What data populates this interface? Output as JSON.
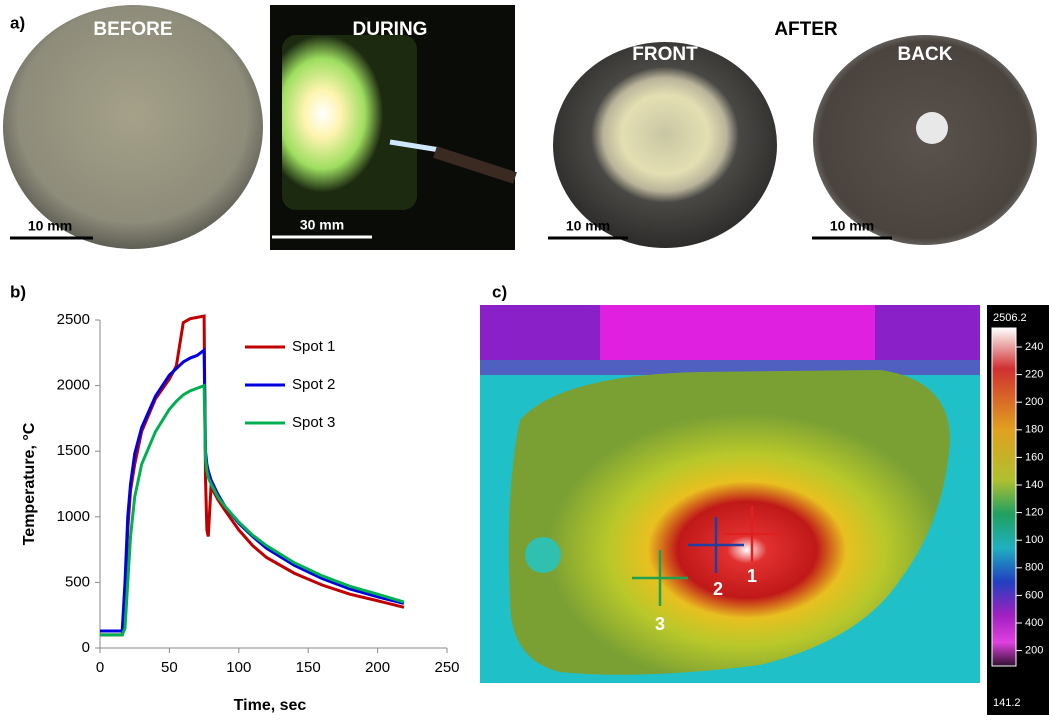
{
  "panels": {
    "a": "a)",
    "b": "b)",
    "c": "c)"
  },
  "photos": {
    "before": "BEFORE",
    "during": "DURING",
    "after": "AFTER",
    "front": "FRONT",
    "back": "BACK",
    "scale_before": "10 mm",
    "scale_during": "30 mm",
    "scale_front": "10 mm",
    "scale_back": "10 mm"
  },
  "chart_data": {
    "type": "line",
    "x_label": "Time, sec",
    "y_label": "Temperature, °C",
    "x": [
      0,
      16,
      18,
      20,
      22,
      25,
      30,
      40,
      50,
      55,
      60,
      65,
      70,
      75,
      76,
      77,
      78,
      80,
      85,
      90,
      100,
      110,
      120,
      140,
      160,
      180,
      200,
      219
    ],
    "series": [
      {
        "name": "Spot 1",
        "color": "#c00000",
        "values": [
          100,
          100,
          400,
          900,
          1200,
          1400,
          1650,
          1900,
          2050,
          2150,
          2480,
          2510,
          2520,
          2530,
          1300,
          900,
          850,
          1230,
          1130,
          1050,
          900,
          780,
          690,
          570,
          480,
          410,
          360,
          310
        ]
      },
      {
        "name": "Spot 2",
        "color": "#0000e0",
        "values": [
          130,
          130,
          500,
          1000,
          1250,
          1480,
          1680,
          1920,
          2080,
          2130,
          2180,
          2210,
          2230,
          2270,
          1500,
          1400,
          1350,
          1280,
          1170,
          1080,
          950,
          850,
          760,
          630,
          530,
          450,
          390,
          340
        ]
      },
      {
        "name": "Spot 3",
        "color": "#00b050",
        "values": [
          100,
          100,
          150,
          500,
          850,
          1150,
          1400,
          1650,
          1820,
          1880,
          1930,
          1960,
          1980,
          2000,
          1450,
          1350,
          1300,
          1250,
          1150,
          1080,
          960,
          860,
          780,
          650,
          550,
          470,
          410,
          350
        ]
      }
    ],
    "xlim": [
      0,
      250
    ],
    "xticks": [
      0,
      50,
      100,
      150,
      200,
      250
    ],
    "ylim": [
      0,
      2500
    ],
    "yticks": [
      0,
      500,
      1000,
      1500,
      2000,
      2500
    ]
  },
  "thermal": {
    "spots": [
      "1",
      "2",
      "3"
    ],
    "scale_max": "2506.2",
    "scale_min": "141.2",
    "scale_labels": [
      "240",
      "220",
      "200",
      "180",
      "160",
      "140",
      "120",
      "100",
      "800",
      "600",
      "400",
      "200"
    ]
  }
}
